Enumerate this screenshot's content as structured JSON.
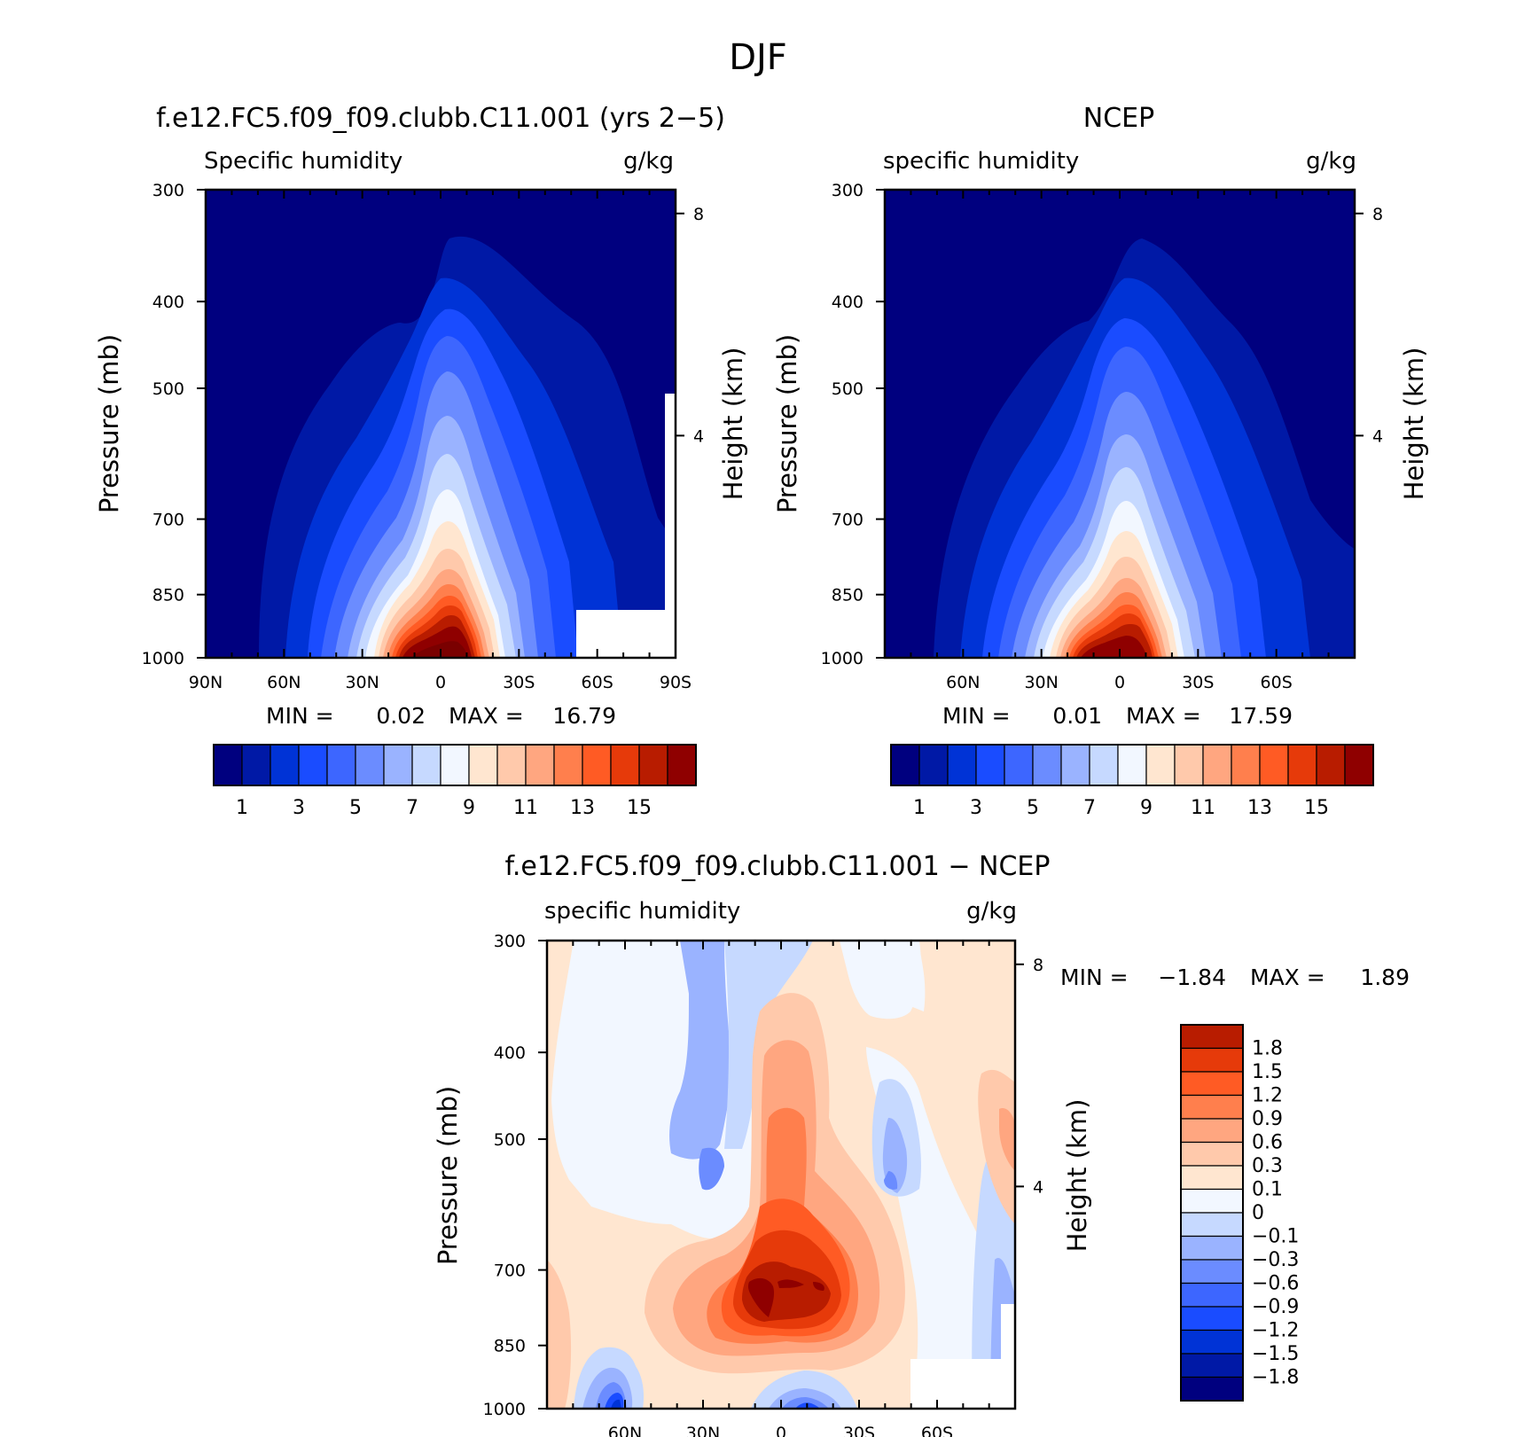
{
  "page": {
    "title": "DJF"
  },
  "colors": {
    "main": [
      "#00007f",
      "#0019a6",
      "#0033d6",
      "#1a4cff",
      "#3d66ff",
      "#6b8cff",
      "#9ab3ff",
      "#c6d9ff",
      "#f2f7ff",
      "#ffe6d0",
      "#ffc9ab",
      "#ffa680",
      "#ff7f4d",
      "#ff5b24",
      "#e63a0a",
      "#b81c00",
      "#8f0000",
      "#7a0000"
    ],
    "diff": [
      "#00007f",
      "#0019a6",
      "#0033d6",
      "#1a4cff",
      "#3d66ff",
      "#6b8cff",
      "#9ab3ff",
      "#c6d9ff",
      "#f2f7ff",
      "#ffe6d0",
      "#ffc9ab",
      "#ffa680",
      "#ff7f4d",
      "#ff5b24",
      "#e63a0a",
      "#b81c00",
      "#8f0000"
    ],
    "frame": "#000000"
  },
  "chart_data": [
    {
      "id": "model",
      "type": "contour",
      "title": "f.e12.FC5.f09_f09.clubb.C11.001 (yrs 2−5)",
      "left_label": "Specific humidity",
      "right_label": "g/kg",
      "ylabel": "Pressure (mb)",
      "y2label": "Height (km)",
      "x_ticks": [
        "90N",
        "60N",
        "30N",
        "0",
        "30S",
        "60S",
        "90S"
      ],
      "x_tick_values": [
        90,
        60,
        30,
        0,
        -30,
        -60,
        -90
      ],
      "y_ticks": [
        "300",
        "400",
        "500",
        "700",
        "850",
        "1000"
      ],
      "y_tick_values": [
        300,
        400,
        500,
        700,
        850,
        1000
      ],
      "y2_ticks": [
        "8",
        "4"
      ],
      "y2_tick_values": [
        8,
        4
      ],
      "xlim": [
        90,
        -90
      ],
      "ylim": [
        1000,
        300
      ],
      "min_label": "MIN =",
      "min_value": "0.02",
      "max_label": "MAX =",
      "max_value": "16.79",
      "min": 0.02,
      "max": 16.79,
      "levels": [
        1,
        2,
        3,
        4,
        5,
        6,
        7,
        8,
        9,
        10,
        11,
        12,
        13,
        14,
        15,
        16
      ],
      "colorbar_labels": [
        "1",
        "3",
        "5",
        "7",
        "9",
        "11",
        "13",
        "15"
      ],
      "colorbar_label_values": [
        1,
        3,
        5,
        7,
        9,
        11,
        13,
        15
      ],
      "missing_region": "near surface 55S-90S"
    },
    {
      "id": "obs",
      "type": "contour",
      "title": "NCEP",
      "left_label": "specific humidity",
      "right_label": "g/kg",
      "ylabel": "Pressure (mb)",
      "y2label": "Height (km)",
      "x_ticks": [
        "60N",
        "30N",
        "0",
        "30S",
        "60S"
      ],
      "x_tick_values": [
        60,
        30,
        0,
        -30,
        -60
      ],
      "y_ticks": [
        "300",
        "400",
        "500",
        "700",
        "850",
        "1000"
      ],
      "y_tick_values": [
        300,
        400,
        500,
        700,
        850,
        1000
      ],
      "y2_ticks": [
        "8",
        "4"
      ],
      "y2_tick_values": [
        8,
        4
      ],
      "xlim": [
        90,
        -90
      ],
      "ylim": [
        1000,
        300
      ],
      "min_label": "MIN =",
      "min_value": "0.01",
      "max_label": "MAX =",
      "max_value": "17.59",
      "min": 0.01,
      "max": 17.59,
      "levels": [
        1,
        2,
        3,
        4,
        5,
        6,
        7,
        8,
        9,
        10,
        11,
        12,
        13,
        14,
        15,
        16
      ],
      "colorbar_labels": [
        "1",
        "3",
        "5",
        "7",
        "9",
        "11",
        "13",
        "15"
      ],
      "colorbar_label_values": [
        1,
        3,
        5,
        7,
        9,
        11,
        13,
        15
      ]
    },
    {
      "id": "diff",
      "type": "contour",
      "title": "f.e12.FC5.f09_f09.clubb.C11.001 − NCEP",
      "left_label": "specific humidity",
      "right_label": "g/kg",
      "ylabel": "Pressure (mb)",
      "y2label": "Height (km)",
      "x_ticks": [
        "60N",
        "30N",
        "0",
        "30S",
        "60S"
      ],
      "x_tick_values": [
        60,
        30,
        0,
        -30,
        -60
      ],
      "y_ticks": [
        "300",
        "400",
        "500",
        "700",
        "850",
        "1000"
      ],
      "y_tick_values": [
        300,
        400,
        500,
        700,
        850,
        1000
      ],
      "y2_ticks": [
        "8",
        "4"
      ],
      "y2_tick_values": [
        8,
        4
      ],
      "xlim": [
        90,
        -90
      ],
      "ylim": [
        1000,
        300
      ],
      "min_label": "MIN =",
      "min_value": "−1.84",
      "max_label": "MAX =",
      "max_value": "1.89",
      "min": -1.84,
      "max": 1.89,
      "levels": [
        -1.8,
        -1.5,
        -1.2,
        -0.9,
        -0.6,
        -0.3,
        -0.1,
        0,
        0.1,
        0.3,
        0.6,
        0.9,
        1.2,
        1.5,
        1.8
      ],
      "colorbar_labels": [
        "1.8",
        "1.5",
        "1.2",
        "0.9",
        "0.6",
        "0.3",
        "0.1",
        "0",
        "−0.1",
        "−0.3",
        "−0.6",
        "−0.9",
        "−1.2",
        "−1.5",
        "−1.8"
      ],
      "colorbar_label_values": [
        1.8,
        1.5,
        1.2,
        0.9,
        0.6,
        0.3,
        0.1,
        0,
        -0.1,
        -0.3,
        -0.6,
        -0.9,
        -1.2,
        -1.5,
        -1.8
      ]
    }
  ]
}
